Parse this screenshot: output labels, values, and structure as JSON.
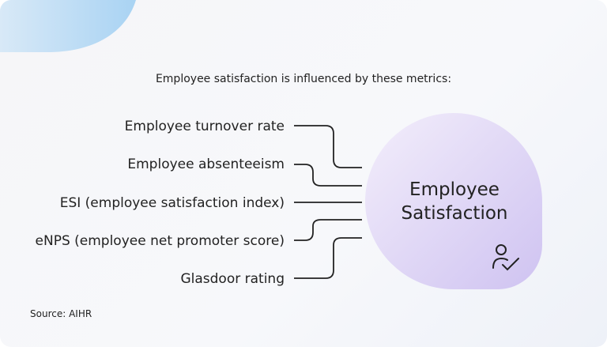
{
  "heading": "Employee satisfaction is influenced by these metrics:",
  "metrics": [
    "Employee turnover rate",
    "Employee absenteeism",
    "ESI (employee satisfaction index)",
    "eNPS (employee net promoter score)",
    "Glasdoor rating"
  ],
  "center": {
    "line1": "Employee",
    "line2": "Satisfaction"
  },
  "source": "Source: AIHR"
}
